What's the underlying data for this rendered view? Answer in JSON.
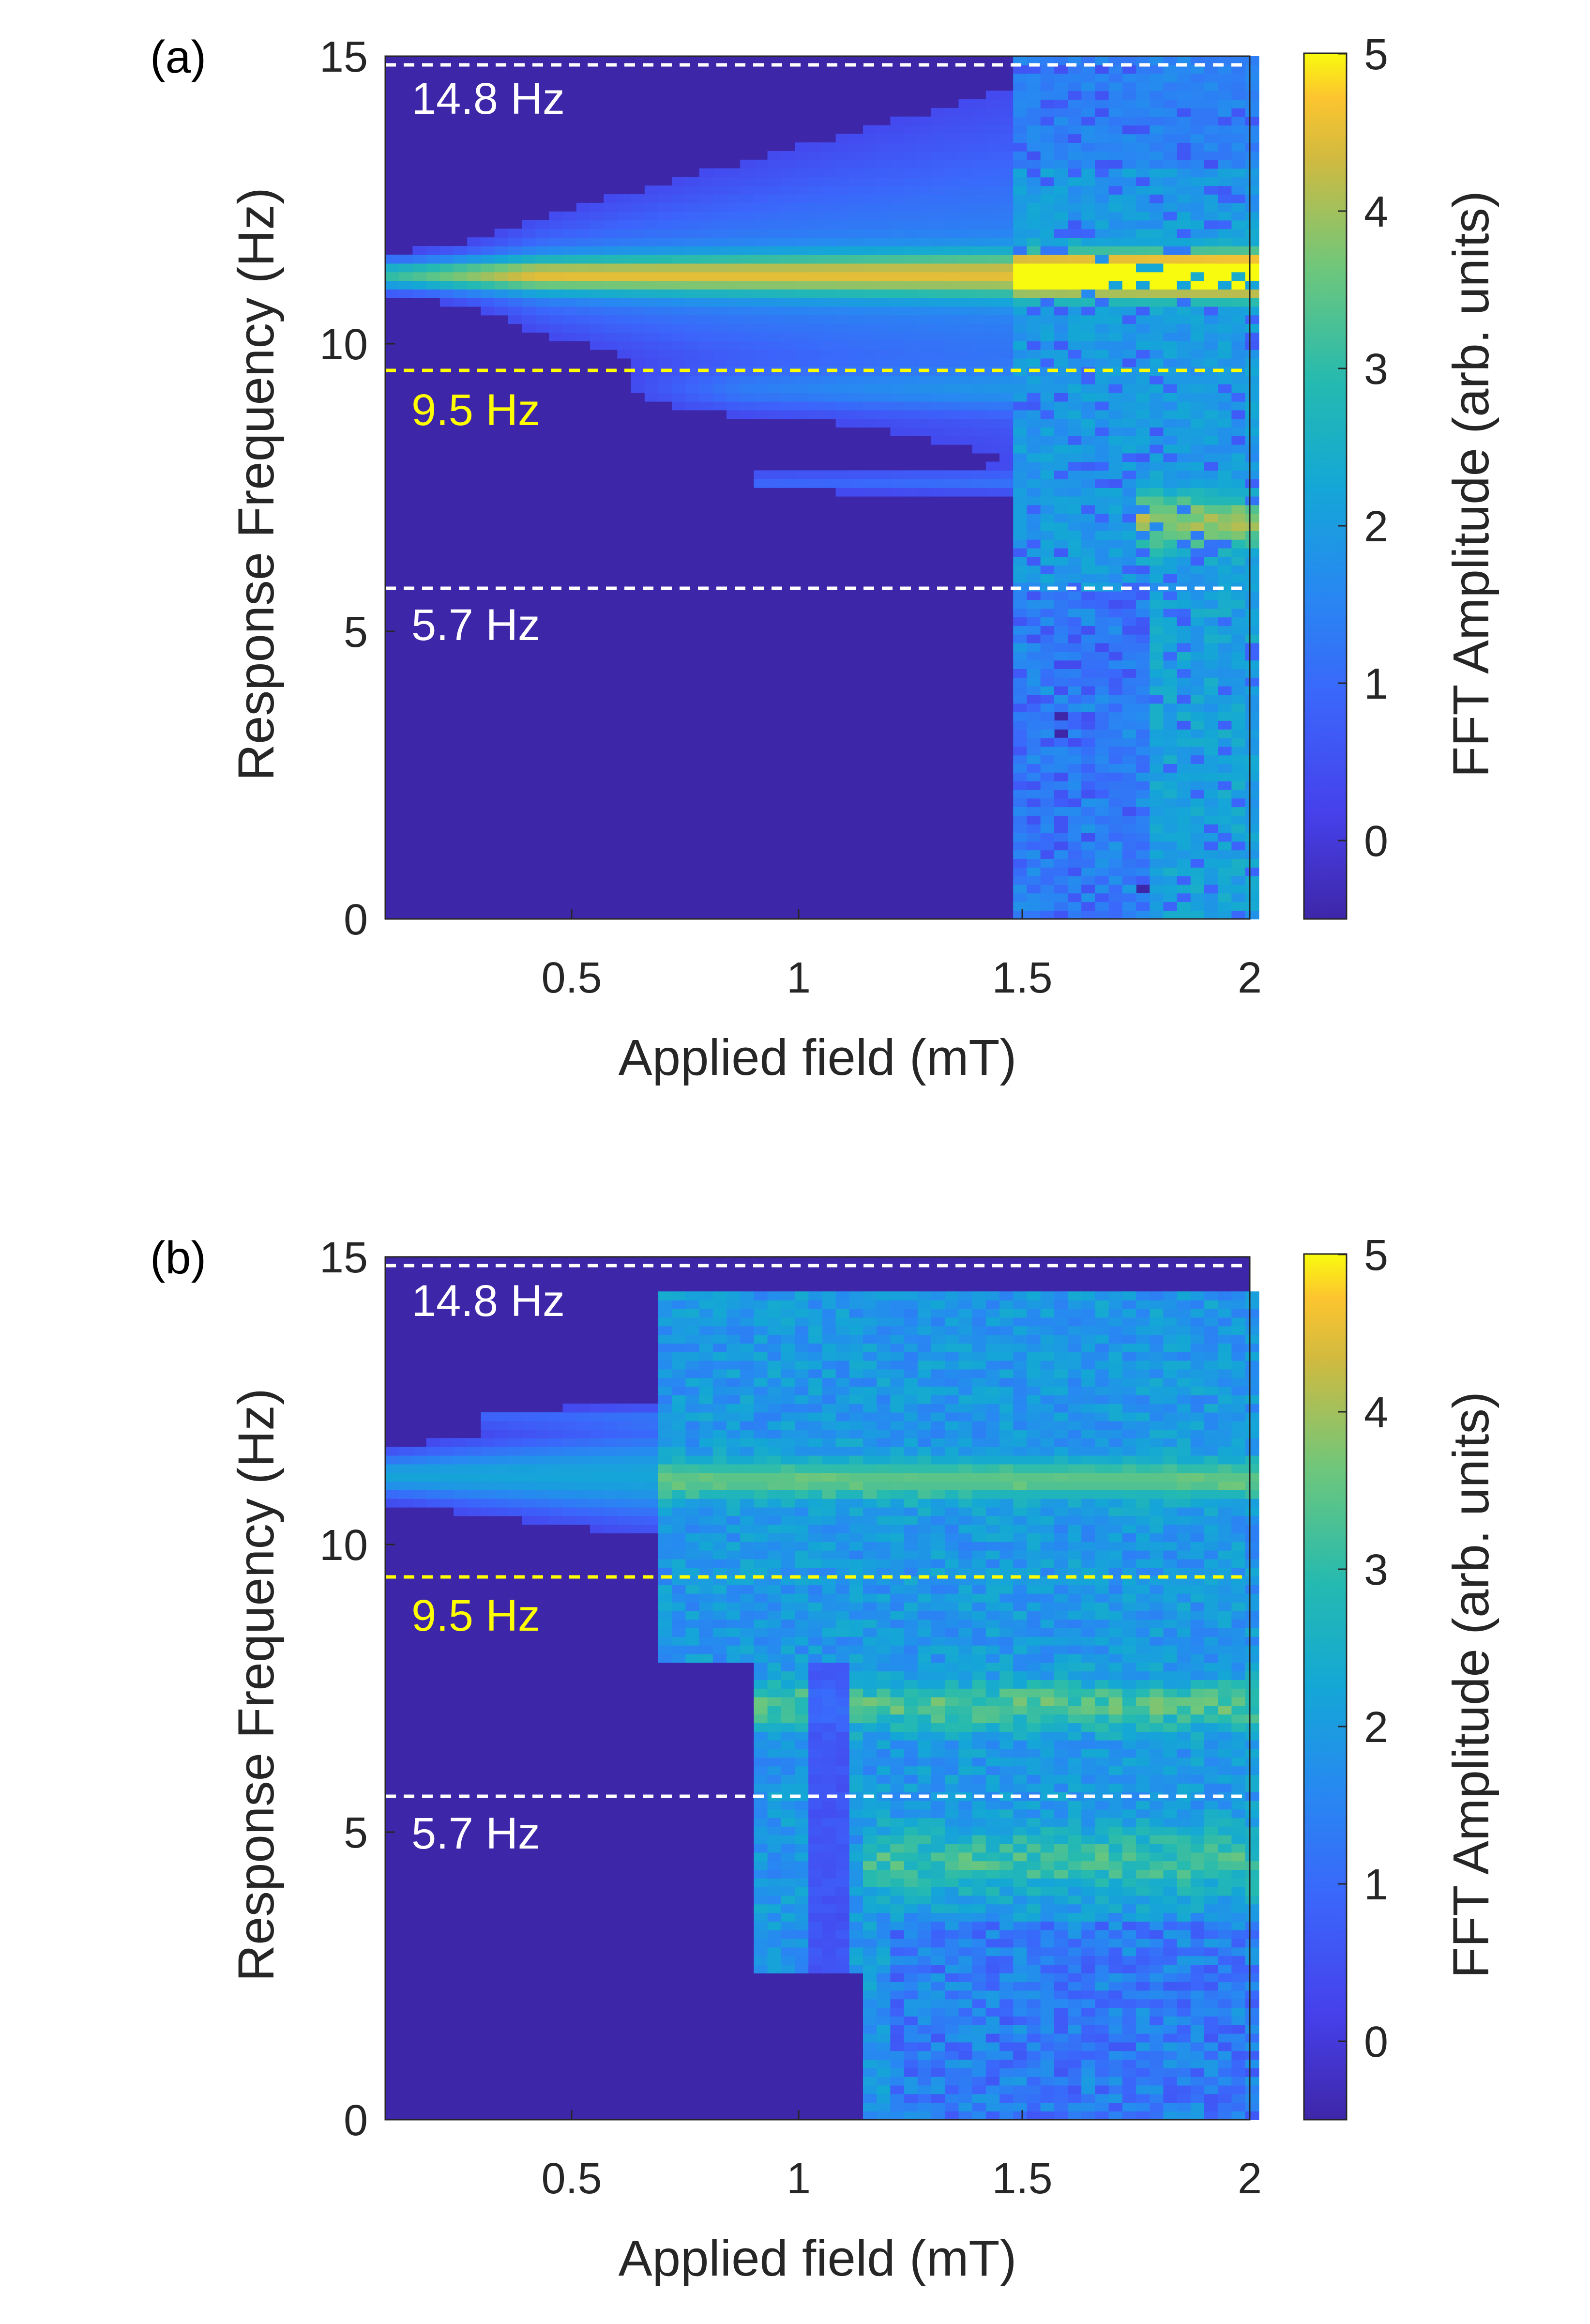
{
  "chart_data": [
    {
      "type": "heatmap",
      "panel_label": "(a)",
      "xlabel": "Applied field (mT)",
      "ylabel": "Response Frequency (Hz)",
      "xlim": [
        0.1,
        2.0
      ],
      "ylim": [
        0,
        15
      ],
      "xticks": [
        "0.5",
        "1",
        "1.5",
        "2"
      ],
      "yticks": [
        "0",
        "5",
        "10",
        "15"
      ],
      "colorbar": {
        "label": "FFT Amplitude (arb. units)",
        "range": [
          -0.5,
          5
        ],
        "ticks": [
          "0",
          "1",
          "2",
          "3",
          "4",
          "5"
        ]
      },
      "reference_lines": [
        {
          "value": 14.8,
          "label": "14.8 Hz",
          "color": "#ffffff"
        },
        {
          "value": 9.5,
          "label": "9.5 Hz",
          "color": "#ffff00"
        },
        {
          "value": 5.7,
          "label": "5.7 Hz",
          "color": "#ffffff"
        }
      ],
      "features": {
        "main_line_hz": 11.2,
        "onset_field_mT": 1.5,
        "secondary_line_hz": 7.0
      }
    },
    {
      "type": "heatmap",
      "panel_label": "(b)",
      "xlabel": "Applied field (mT)",
      "ylabel": "Response Frequency (Hz)",
      "xlim": [
        0.1,
        2.0
      ],
      "ylim": [
        0,
        15
      ],
      "xticks": [
        "0.5",
        "1",
        "1.5",
        "2"
      ],
      "yticks": [
        "0",
        "5",
        "10",
        "15"
      ],
      "colorbar": {
        "label": "FFT Amplitude (arb. units)",
        "range": [
          -0.5,
          5
        ],
        "ticks": [
          "0",
          "1",
          "2",
          "3",
          "4",
          "5"
        ]
      },
      "reference_lines": [
        {
          "value": 14.8,
          "label": "14.8 Hz",
          "color": "#ffffff"
        },
        {
          "value": 9.5,
          "label": "9.5 Hz",
          "color": "#ffff00"
        },
        {
          "value": 5.7,
          "label": "5.7 Hz",
          "color": "#ffffff"
        }
      ],
      "features": {
        "main_line_hz": 11.2,
        "onset_field_mT": 0.7,
        "secondary_lines_hz": [
          7.2,
          4.5
        ]
      }
    }
  ]
}
